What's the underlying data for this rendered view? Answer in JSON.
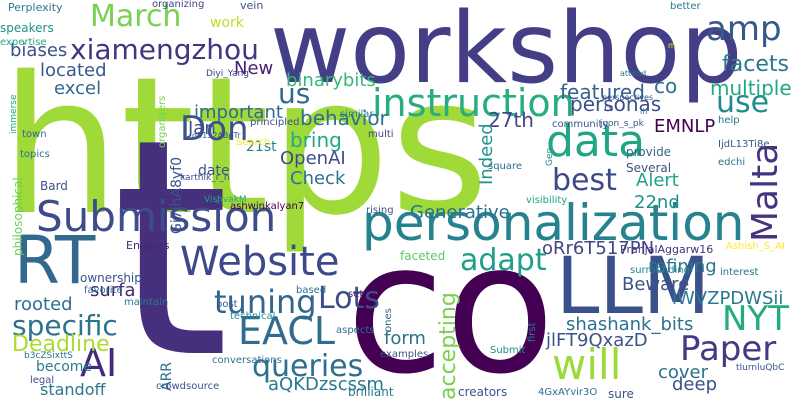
{
  "words": [
    {
      "text": "https",
      "color": "#a0da39"
    },
    {
      "text": "t",
      "color": "#46307e"
    },
    {
      "text": "co",
      "color": "#440154"
    },
    {
      "text": "workshop",
      "color": "#433e85"
    },
    {
      "text": "personalization",
      "color": "#26828e"
    },
    {
      "text": "LLM",
      "color": "#3b518b"
    },
    {
      "text": "RT",
      "color": "#31688e"
    },
    {
      "text": "Submission",
      "color": "#3e4c8a"
    },
    {
      "text": "data",
      "color": "#21a685"
    },
    {
      "text": "instruction",
      "color": "#26ad81"
    },
    {
      "text": "Website",
      "color": "#3e4989"
    },
    {
      "text": "March",
      "color": "#7ad151"
    },
    {
      "text": "Malta",
      "color": "#46337e"
    },
    {
      "text": "EACL",
      "color": "#2f6c8e"
    },
    {
      "text": "Paper",
      "color": "#443a83"
    },
    {
      "text": "NYT",
      "color": "#25ab82"
    },
    {
      "text": "will",
      "color": "#9bd93c"
    },
    {
      "text": "AI",
      "color": "#482878"
    },
    {
      "text": "xiamengzhou",
      "color": "#453581"
    },
    {
      "text": "amp",
      "color": "#38588c"
    },
    {
      "text": "tuning",
      "color": "#31678e"
    },
    {
      "text": "specific",
      "color": "#2c738e"
    },
    {
      "text": "queries",
      "color": "#2e6f8e"
    },
    {
      "text": "Don",
      "color": "#3b528b"
    },
    {
      "text": "use",
      "color": "#228b8d"
    },
    {
      "text": "adapt",
      "color": "#1f9e89"
    },
    {
      "text": "best",
      "color": "#3f4889"
    },
    {
      "text": "Lots",
      "color": "#3d4d8a"
    },
    {
      "text": "us",
      "color": "#30698e"
    },
    {
      "text": "featured",
      "color": "#34618d"
    },
    {
      "text": "facets",
      "color": "#2a788e"
    },
    {
      "text": "multiple",
      "color": "#22a884"
    },
    {
      "text": "Deadline",
      "color": "#addc30"
    },
    {
      "text": "behavior",
      "color": "#2d708e"
    },
    {
      "text": "27th",
      "color": "#404588"
    },
    {
      "text": "personas",
      "color": "#3d4e8a"
    },
    {
      "text": "binarybits",
      "color": "#35b779"
    },
    {
      "text": "located",
      "color": "#38598c"
    },
    {
      "text": "biases",
      "color": "#3b528b"
    },
    {
      "text": "excel",
      "color": "#31688e"
    },
    {
      "text": "important",
      "color": "#31688e"
    },
    {
      "text": "New",
      "color": "#482173"
    },
    {
      "text": "Jan",
      "color": "#3b528b"
    },
    {
      "text": "bring",
      "color": "#22a884"
    },
    {
      "text": "OpenAI",
      "color": "#3e4c8a"
    },
    {
      "text": "Check",
      "color": "#2c728e"
    },
    {
      "text": "Indeed",
      "color": "#20928c"
    },
    {
      "text": "Alert",
      "color": "#1fa188"
    },
    {
      "text": "EMNLP",
      "color": "#440154"
    },
    {
      "text": "22nd",
      "color": "#218f8d"
    },
    {
      "text": "Generative",
      "color": "#2c728e"
    },
    {
      "text": "oRr6T517PN",
      "color": "#414487"
    },
    {
      "text": "refining",
      "color": "#2a788e"
    },
    {
      "text": "Beware",
      "color": "#3b528b"
    },
    {
      "text": "lWVZPDWSii",
      "color": "#2a778e"
    },
    {
      "text": "shashank_bits",
      "color": "#2c718e"
    },
    {
      "text": "jlFT9QxazD",
      "color": "#3b528b"
    },
    {
      "text": "surfa",
      "color": "#482878"
    },
    {
      "text": "rooted",
      "color": "#2d708e"
    },
    {
      "text": "form",
      "color": "#2c718e"
    },
    {
      "text": "accepting",
      "color": "#7ad151"
    },
    {
      "text": "cover",
      "color": "#2d708e"
    },
    {
      "text": "deep",
      "color": "#3b528b"
    },
    {
      "text": "aQKDzscssm",
      "color": "#2a788e"
    },
    {
      "text": "ARR",
      "color": "#2c728e"
    },
    {
      "text": "standoff",
      "color": "#2a788e"
    },
    {
      "text": "become",
      "color": "#287d8e"
    },
    {
      "text": "work",
      "color": "#bddf26"
    },
    {
      "text": "21st",
      "color": "#25838e"
    },
    {
      "text": "Gi7ihA8yf0",
      "color": "#3b528b"
    },
    {
      "text": "date",
      "color": "#3b528b"
    },
    {
      "text": "co",
      "color": "#2c728e"
    },
    {
      "text": "Perplexity",
      "color": "#2a788e"
    },
    {
      "text": "organizing",
      "color": "#414487"
    },
    {
      "text": "vein",
      "color": "#3b528b"
    },
    {
      "text": "better",
      "color": "#2a788e"
    },
    {
      "text": "speakers",
      "color": "#21918c"
    },
    {
      "text": "expertise",
      "color": "#22a884"
    },
    {
      "text": "Diyi_Yang",
      "color": "#443b84"
    },
    {
      "text": "organizers",
      "color": "#75d054"
    },
    {
      "text": "Search",
      "color": "#fde725"
    },
    {
      "text": "principled",
      "color": "#3b528b"
    },
    {
      "text": "q5152ABpTr",
      "color": "#3b528b"
    },
    {
      "text": "karthik_r_n",
      "color": "#3e4a89"
    },
    {
      "text": "joon_s_pk",
      "color": "#38588c"
    },
    {
      "text": "community",
      "color": "#3b528b"
    },
    {
      "text": "similar",
      "color": "#25848e"
    },
    {
      "text": "perspectives",
      "color": "#3b528b"
    },
    {
      "text": "help",
      "color": "#2a788e"
    },
    {
      "text": "IjdL13Ti8e",
      "color": "#38588c"
    },
    {
      "text": "provide",
      "color": "#31688e"
    },
    {
      "text": "edchi",
      "color": "#2c728e"
    },
    {
      "text": "Several",
      "color": "#3b528b"
    },
    {
      "text": "square",
      "color": "#2c728e"
    },
    {
      "text": "multi",
      "color": "#414487"
    },
    {
      "text": "visibility",
      "color": "#20a486"
    },
    {
      "text": "rising",
      "color": "#3b528b"
    },
    {
      "text": "Bard",
      "color": "#3b528b"
    },
    {
      "text": "town",
      "color": "#31688e"
    },
    {
      "text": "topics",
      "color": "#2c728e"
    },
    {
      "text": "immerse",
      "color": "#22a884"
    },
    {
      "text": "philosophical",
      "color": "#6ece58"
    },
    {
      "text": "VishvakM",
      "color": "#22a884"
    },
    {
      "text": "ashwinkalyan7",
      "color": "#440154"
    },
    {
      "text": "Engines",
      "color": "#482475"
    },
    {
      "text": "faceted",
      "color": "#5ec962"
    },
    {
      "text": "PranjalAggarw16",
      "color": "#46337e"
    },
    {
      "text": "Ashish_S_AI",
      "color": "#fde725"
    },
    {
      "text": "interest",
      "color": "#2a788e"
    },
    {
      "text": "surrounding",
      "color": "#25848e"
    },
    {
      "text": "ownership",
      "color": "#3b528b"
    },
    {
      "text": "favorite",
      "color": "#2c728e"
    },
    {
      "text": "maintain",
      "color": "#2a788e"
    },
    {
      "text": "based",
      "color": "#2c728e"
    },
    {
      "text": "technical",
      "color": "#21918c"
    },
    {
      "text": "set",
      "color": "#482878"
    },
    {
      "text": "post",
      "color": "#3b528b"
    },
    {
      "text": "aspects",
      "color": "#2c728e"
    },
    {
      "text": "ones",
      "color": "#31688e"
    },
    {
      "text": "first",
      "color": "#2a788e"
    },
    {
      "text": "Submit",
      "color": "#21918c"
    },
    {
      "text": "examples",
      "color": "#3b528b"
    },
    {
      "text": "conversations",
      "color": "#2c728e"
    },
    {
      "text": "crowdsource",
      "color": "#3b528b"
    },
    {
      "text": "brilliant",
      "color": "#2a788e"
    },
    {
      "text": "creators",
      "color": "#3b528b"
    },
    {
      "text": "4GxAYvir3O",
      "color": "#2c728e"
    },
    {
      "text": "sure",
      "color": "#3b528b"
    },
    {
      "text": "tIurnluQbC",
      "color": "#3b528b"
    },
    {
      "text": "legal",
      "color": "#3b528b"
    },
    {
      "text": "b3cZSixttS",
      "color": "#2c728e"
    },
    {
      "text": "Gen",
      "color": "#21918c"
    },
    {
      "text": "attend",
      "color": "#2a788e"
    },
    {
      "text": "m",
      "color": "#fde725"
    },
    {
      "text": "rs",
      "color": "#3b528b"
    },
    {
      "text": "lh",
      "color": "#2a788e"
    }
  ]
}
